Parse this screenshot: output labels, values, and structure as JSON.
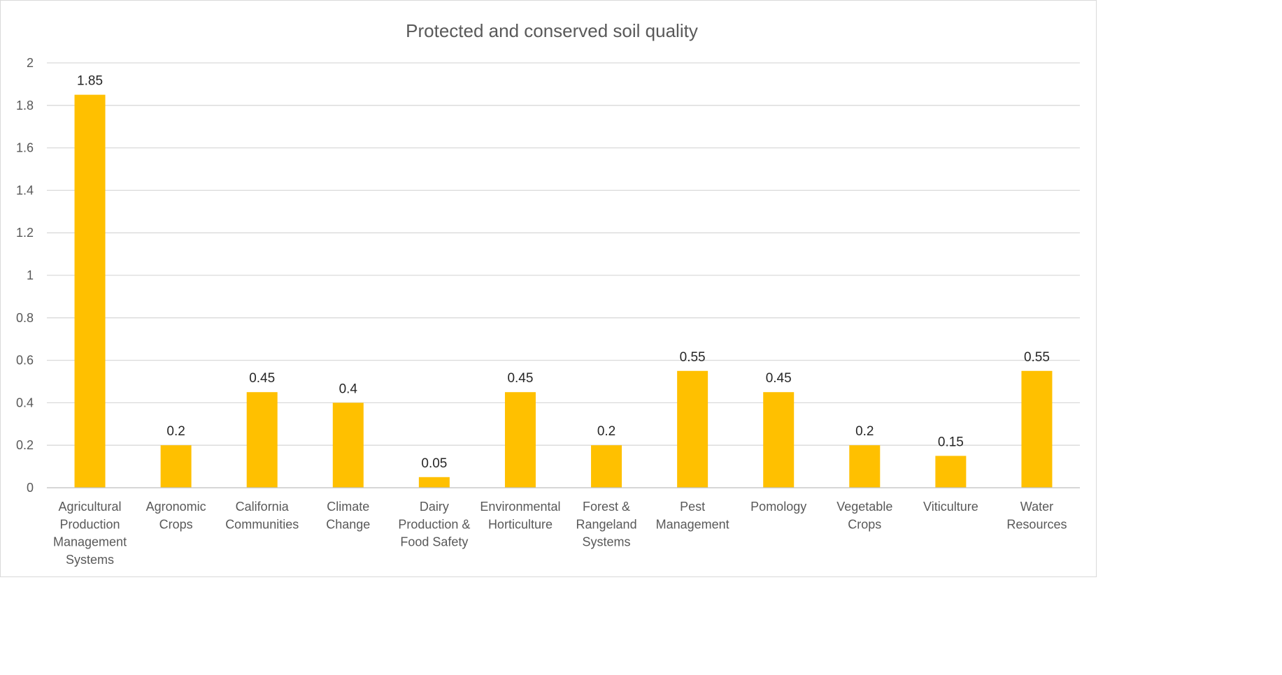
{
  "chart_data": {
    "type": "bar",
    "title": "Protected and conserved soil quality",
    "xlabel": "",
    "ylabel": "",
    "categories": [
      [
        "Agricultural",
        "Production",
        "Management",
        "Systems"
      ],
      [
        "Agronomic",
        "Crops"
      ],
      [
        "California",
        "Communities"
      ],
      [
        "Climate",
        "Change"
      ],
      [
        "Dairy",
        "Production &",
        "Food Safety"
      ],
      [
        "Environmental",
        "Horticulture"
      ],
      [
        "Forest &",
        "Rangeland",
        "Systems"
      ],
      [
        "Pest",
        "Management"
      ],
      [
        "Pomology"
      ],
      [
        "Vegetable",
        "Crops"
      ],
      [
        "Viticulture"
      ],
      [
        "Water",
        "Resources"
      ]
    ],
    "values": [
      1.85,
      0.2,
      0.45,
      0.4,
      0.05,
      0.45,
      0.2,
      0.55,
      0.45,
      0.2,
      0.15,
      0.55
    ],
    "data_labels": [
      "1.85",
      "0.2",
      "0.45",
      "0.4",
      "0.05",
      "0.45",
      "0.2",
      "0.55",
      "0.45",
      "0.2",
      "0.15",
      "0.55"
    ],
    "yticks": [
      "0",
      "0.2",
      "0.4",
      "0.6",
      "0.8",
      "1",
      "1.2",
      "1.4",
      "1.6",
      "1.8",
      "2"
    ],
    "ylim": [
      0,
      2
    ],
    "grid": true,
    "legend": "none",
    "bar_color": "#ffc000"
  }
}
